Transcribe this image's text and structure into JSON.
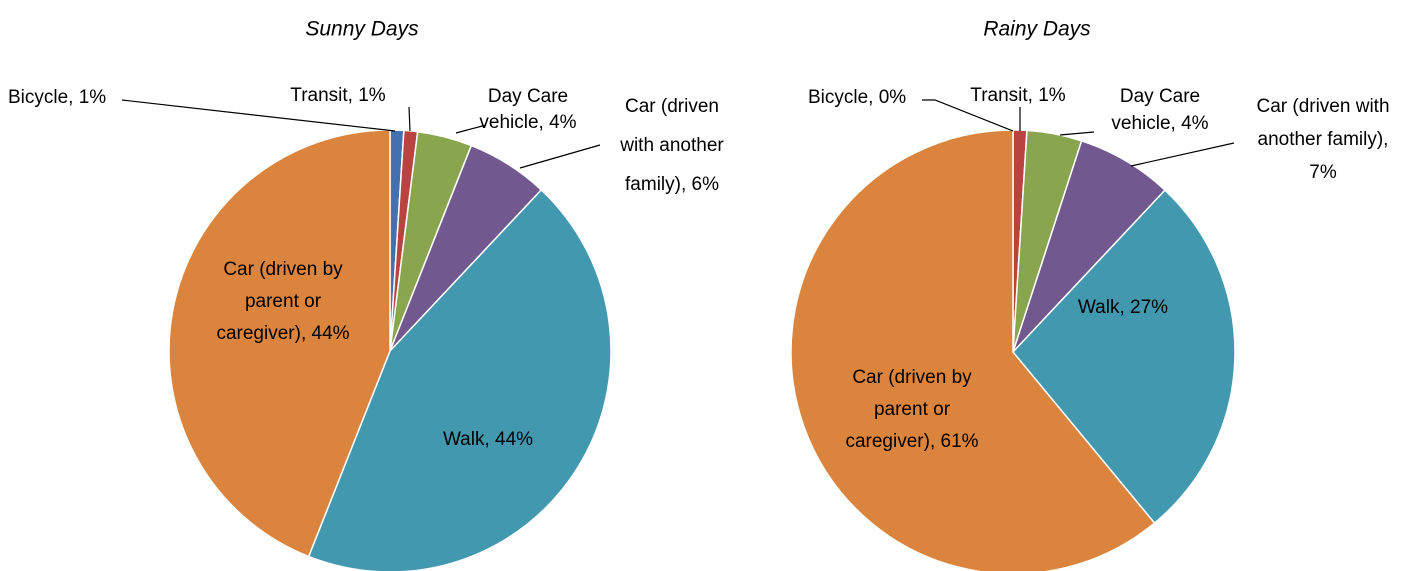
{
  "chart_data": [
    {
      "type": "pie",
      "title": "Sunny  Days",
      "values": [
        1,
        1,
        4,
        6,
        44,
        44
      ],
      "value_labels": [
        "Bicycle, 1%",
        "Transit, 1%",
        "Day Care\nvehicle, 4%",
        "Car (driven\nwith another\nfamily), 6%",
        "Walk, 44%",
        "Car (driven by\nparent or\ncaregiver), 44%"
      ],
      "colors": [
        "#4371b0",
        "#b94341",
        "#89a54e",
        "#71588f",
        "#4198af",
        "#db843d"
      ]
    },
    {
      "type": "pie",
      "title": "Rainy Days",
      "values": [
        0,
        1,
        4,
        7,
        27,
        61
      ],
      "value_labels": [
        "Bicycle, 0%",
        "Transit, 1%",
        "Day Care\nvehicle, 4%",
        "Car (driven with\nanother family),\n7%",
        "Walk, 27%",
        "Car (driven by\nparent or\ncaregiver), 61%"
      ],
      "colors": [
        "#4371b0",
        "#b94341",
        "#89a54e",
        "#71588f",
        "#4198af",
        "#db843d"
      ]
    }
  ]
}
